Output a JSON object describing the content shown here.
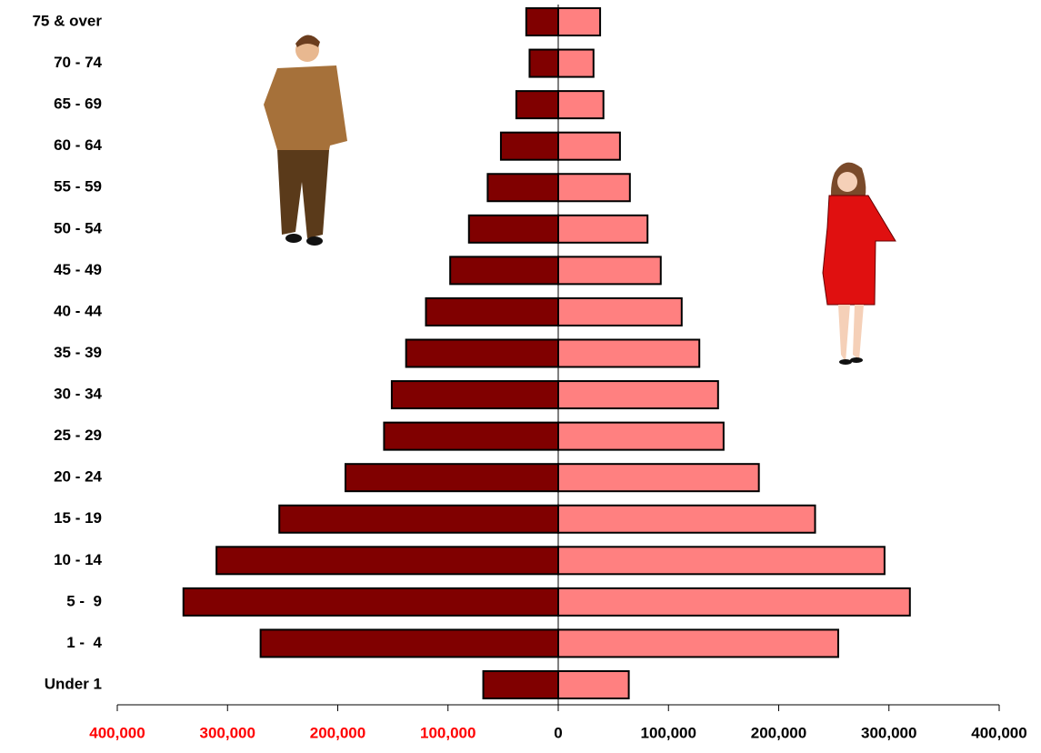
{
  "chart_data": {
    "type": "pyramid",
    "categories": [
      "Under 1",
      "1 -  4",
      "5 -  9",
      "10 - 14",
      "15 - 19",
      "20 - 24",
      "25 - 29",
      "30 - 34",
      "35 - 39",
      "40 - 44",
      "45 - 49",
      "50 - 54",
      "55 - 59",
      "60 - 64",
      "65 - 69",
      "70 - 74",
      "75 & over"
    ],
    "series": [
      {
        "color": "#800000",
        "values": [
          -68000,
          -270000,
          -340000,
          -310000,
          -253000,
          -193000,
          -158000,
          -151000,
          -138000,
          -120000,
          -98000,
          -81000,
          -64000,
          -52000,
          -38000,
          -26000,
          -29000
        ]
      },
      {
        "color": "#ff8080",
        "values": [
          64000,
          254000,
          319000,
          296000,
          233000,
          182000,
          150000,
          145000,
          128000,
          112000,
          93000,
          81000,
          65000,
          56000,
          41000,
          32000,
          38000
        ]
      }
    ],
    "xlim": [
      -400000,
      400000
    ],
    "xticks": [
      {
        "value": -400000,
        "label": "400,000"
      },
      {
        "value": -300000,
        "label": "300,000"
      },
      {
        "value": -200000,
        "label": "200,000"
      },
      {
        "value": -100000,
        "label": "100,000"
      },
      0,
      {
        "value": 100000,
        "label": "100,000"
      },
      {
        "value": 200000,
        "label": "200,000"
      },
      {
        "value": 300000,
        "label": "300,000"
      },
      {
        "value": 400000,
        "label": "400,000"
      }
    ]
  }
}
